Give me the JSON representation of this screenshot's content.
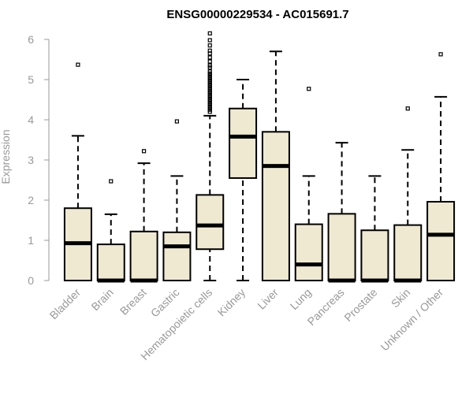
{
  "chart_data": {
    "type": "boxplot",
    "title": "ENSG00000229534 - AC015691.7",
    "ylabel": "Expression",
    "ylim": [
      0,
      6.2
    ],
    "yticks": [
      0,
      1,
      2,
      3,
      4,
      5,
      6
    ],
    "ytick_labels": [
      "0",
      "1",
      "2",
      "3",
      "4",
      "5",
      "6"
    ],
    "categories": [
      "Bladder",
      "Brain",
      "Breast",
      "Gastric",
      "Hematopoietic cells",
      "Kidney",
      "Liver",
      "Lung",
      "Pancreas",
      "Prostate",
      "Skin",
      "Unknown / Other"
    ],
    "series": [
      {
        "category": "Bladder",
        "whisker_low": 0,
        "q1": 0,
        "median": 0.93,
        "q3": 1.8,
        "whisker_high": 3.6,
        "outliers": [
          5.37
        ]
      },
      {
        "category": "Brain",
        "whisker_low": 0,
        "q1": 0,
        "median": 0,
        "q3": 0.9,
        "whisker_high": 1.65,
        "outliers": [
          2.47
        ]
      },
      {
        "category": "Breast",
        "whisker_low": 0,
        "q1": 0,
        "median": 0,
        "q3": 1.22,
        "whisker_high": 2.92,
        "outliers": [
          3.22
        ]
      },
      {
        "category": "Gastric",
        "whisker_low": 0,
        "q1": 0,
        "median": 0.85,
        "q3": 1.2,
        "whisker_high": 2.6,
        "outliers": [
          3.96
        ]
      },
      {
        "category": "Hematopoietic cells",
        "whisker_low": 0,
        "q1": 0.78,
        "median": 1.37,
        "q3": 2.13,
        "whisker_high": 4.1,
        "outliers": [
          4.2,
          4.25,
          4.3,
          4.35,
          4.4,
          4.45,
          4.5,
          4.55,
          4.6,
          4.65,
          4.7,
          4.75,
          4.8,
          4.85,
          4.9,
          4.95,
          5.0,
          5.05,
          5.1,
          5.15,
          5.2,
          5.3,
          5.35,
          5.45,
          5.55,
          5.65,
          5.72,
          5.85,
          5.98,
          6.15
        ]
      },
      {
        "category": "Kidney",
        "whisker_low": 0,
        "q1": 2.55,
        "median": 3.58,
        "q3": 4.28,
        "whisker_high": 5.0,
        "outliers": []
      },
      {
        "category": "Liver",
        "whisker_low": 0,
        "q1": 0,
        "median": 2.85,
        "q3": 3.7,
        "whisker_high": 5.7,
        "outliers": []
      },
      {
        "category": "Lung",
        "whisker_low": 0,
        "q1": 0,
        "median": 0.4,
        "q3": 1.4,
        "whisker_high": 2.6,
        "outliers": [
          4.77
        ]
      },
      {
        "category": "Pancreas",
        "whisker_low": 0,
        "q1": 0,
        "median": 0,
        "q3": 1.66,
        "whisker_high": 3.43,
        "outliers": []
      },
      {
        "category": "Prostate",
        "whisker_low": 0,
        "q1": 0,
        "median": 0,
        "q3": 1.25,
        "whisker_high": 2.6,
        "outliers": []
      },
      {
        "category": "Skin",
        "whisker_low": 0,
        "q1": 0,
        "median": 0,
        "q3": 1.38,
        "whisker_high": 3.25,
        "outliers": [
          4.28
        ]
      },
      {
        "category": "Unknown / Other",
        "whisker_low": 0,
        "q1": 0,
        "median": 1.14,
        "q3": 1.96,
        "whisker_high": 4.57,
        "outliers": [
          5.63
        ]
      }
    ],
    "colors": {
      "box_fill": "#efe9d2",
      "box_stroke": "#000000",
      "axis": "#999999"
    },
    "grid": false,
    "legend": "none"
  }
}
